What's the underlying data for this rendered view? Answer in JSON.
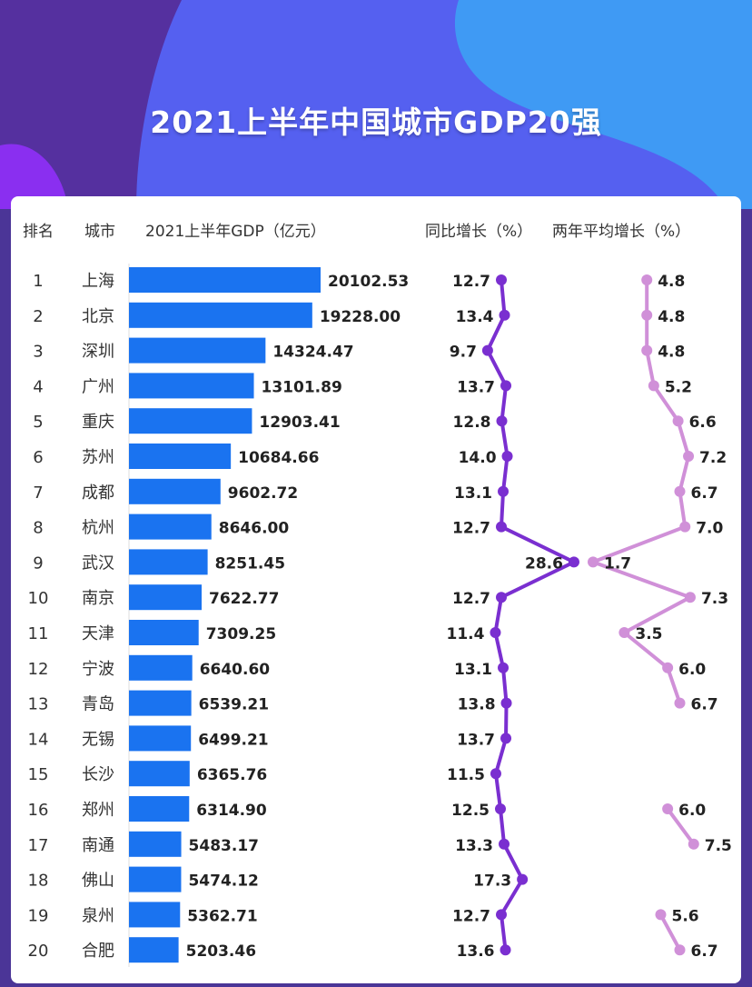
{
  "title": "2021上半年中国城市GDP20强",
  "colors": {
    "bar": "#1a73f0",
    "yoy": "#7a2fd0",
    "two_year": "#d090d8"
  },
  "chart_data": {
    "type": "table",
    "title": "2021上半年中国城市GDP20强",
    "columns": [
      "排名",
      "城市",
      "2021上半年GDP（亿元）",
      "同比增长（%）",
      "两年平均增长（%）"
    ],
    "ranks": [
      1,
      2,
      3,
      4,
      5,
      6,
      7,
      8,
      9,
      10,
      11,
      12,
      13,
      14,
      15,
      16,
      17,
      18,
      19,
      20
    ],
    "cities": [
      "上海",
      "北京",
      "深圳",
      "广州",
      "重庆",
      "苏州",
      "成都",
      "杭州",
      "武汉",
      "南京",
      "天津",
      "宁波",
      "青岛",
      "无锡",
      "长沙",
      "郑州",
      "南通",
      "佛山",
      "泉州",
      "合肥"
    ],
    "series": [
      {
        "name": "2021上半年GDP（亿元）",
        "type": "bar",
        "values": [
          20102.53,
          19228.0,
          14324.47,
          13101.89,
          12903.41,
          10684.66,
          9602.72,
          8646.0,
          8251.45,
          7622.77,
          7309.25,
          6640.6,
          6539.21,
          6499.21,
          6365.76,
          6314.9,
          5483.17,
          5474.12,
          5362.71,
          5203.46
        ]
      },
      {
        "name": "同比增长（%）",
        "type": "line",
        "values": [
          12.7,
          13.4,
          9.7,
          13.7,
          12.8,
          14.0,
          13.1,
          12.7,
          28.6,
          12.7,
          11.4,
          13.1,
          13.8,
          13.7,
          11.5,
          12.5,
          13.3,
          17.3,
          12.7,
          13.6
        ]
      },
      {
        "name": "两年平均增长（%）",
        "type": "line",
        "values": [
          4.8,
          4.8,
          4.8,
          5.2,
          6.6,
          7.2,
          6.7,
          7.0,
          1.7,
          7.3,
          3.5,
          6.0,
          6.7,
          null,
          null,
          6.0,
          7.5,
          null,
          5.6,
          6.7
        ]
      }
    ]
  }
}
